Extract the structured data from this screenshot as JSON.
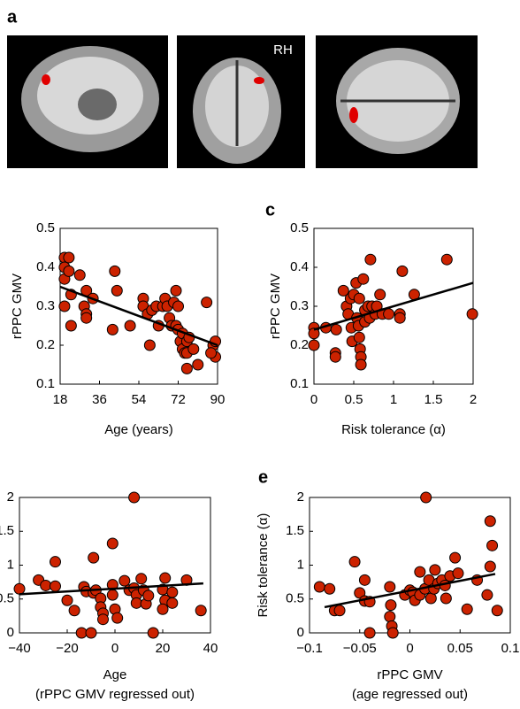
{
  "panel_a": {
    "label": "a",
    "annotation": "RH"
  },
  "chart_data": [
    {
      "type": "scatter",
      "xlabel": "Age (years)",
      "ylabel": "rPPC GMV",
      "color": "#cc2200",
      "xlim": [
        18,
        90
      ],
      "xticks": [
        18,
        36,
        54,
        72,
        90
      ],
      "ylim": [
        0.1,
        0.5
      ],
      "yticks": [
        0.1,
        0.2,
        0.3,
        0.4,
        0.5
      ],
      "x": [
        20,
        22,
        20,
        20,
        22,
        23,
        20,
        23,
        27,
        30,
        29,
        30,
        30,
        33,
        43,
        44,
        42,
        50,
        56,
        56,
        58,
        60,
        59,
        62,
        63,
        65,
        66,
        67,
        68,
        69,
        70,
        71,
        71,
        72,
        72,
        73,
        74,
        74,
        75,
        76,
        76,
        77,
        79,
        76,
        81,
        85,
        88,
        89,
        89,
        87
      ],
      "values": [
        0.425,
        0.425,
        0.4,
        0.37,
        0.39,
        0.33,
        0.3,
        0.25,
        0.38,
        0.34,
        0.3,
        0.28,
        0.27,
        0.32,
        0.39,
        0.34,
        0.24,
        0.25,
        0.32,
        0.3,
        0.28,
        0.29,
        0.2,
        0.3,
        0.25,
        0.3,
        0.32,
        0.3,
        0.27,
        0.25,
        0.31,
        0.34,
        0.25,
        0.3,
        0.24,
        0.21,
        0.23,
        0.19,
        0.18,
        0.21,
        0.18,
        0.22,
        0.19,
        0.14,
        0.15,
        0.31,
        0.2,
        0.21,
        0.17,
        0.18
      ],
      "fit": {
        "x": [
          18,
          90
        ],
        "values": [
          0.35,
          0.2
        ]
      }
    },
    {
      "type": "scatter",
      "panel_label": "c",
      "xlabel": "Risk tolerance (α)",
      "ylabel": "rPPC GMV",
      "color": "#cc2200",
      "xlim": [
        0,
        2
      ],
      "xticks": [
        0,
        0.5,
        1,
        1.5,
        2
      ],
      "ylim": [
        0.1,
        0.5
      ],
      "yticks": [
        0.1,
        0.2,
        0.3,
        0.4,
        0.5
      ],
      "x": [
        0,
        0,
        0,
        0.15,
        0.28,
        0.27,
        0.27,
        0.37,
        0.41,
        0.43,
        0.46,
        0.47,
        0.48,
        0.5,
        0.53,
        0.54,
        0.56,
        0.57,
        0.57,
        0.58,
        0.59,
        0.59,
        0.62,
        0.64,
        0.64,
        0.68,
        0.7,
        0.71,
        0.73,
        0.77,
        0.79,
        0.83,
        0.86,
        0.94,
        1.08,
        1.08,
        1.11,
        1.26,
        1.67,
        1.99
      ],
      "values": [
        0.245,
        0.23,
        0.2,
        0.245,
        0.24,
        0.18,
        0.17,
        0.34,
        0.3,
        0.28,
        0.32,
        0.245,
        0.21,
        0.33,
        0.36,
        0.27,
        0.25,
        0.32,
        0.22,
        0.19,
        0.17,
        0.15,
        0.37,
        0.29,
        0.26,
        0.3,
        0.27,
        0.42,
        0.3,
        0.28,
        0.3,
        0.33,
        0.28,
        0.28,
        0.28,
        0.27,
        0.39,
        0.33,
        0.42,
        0.28
      ],
      "fit": {
        "x": [
          0,
          2
        ],
        "values": [
          0.24,
          0.36
        ]
      }
    },
    {
      "type": "scatter",
      "xlabel": [
        "Age",
        "(rPPC GMV regressed out)"
      ],
      "color": "#cc2200",
      "xlim": [
        -40,
        40
      ],
      "xticks": [
        {
          "value": -40,
          "label": "−40"
        },
        {
          "value": -20,
          "label": "−20"
        },
        0,
        20,
        40
      ],
      "ylim": [
        0,
        2
      ],
      "yticks": [
        0,
        0.5,
        1,
        1.5,
        2
      ],
      "x": [
        -40,
        -32,
        -29,
        -25,
        -25,
        -20,
        -17,
        -13,
        -9,
        -14,
        -10,
        -12,
        -9,
        -8,
        -6,
        -6,
        -5,
        -5,
        -1,
        -1,
        -1,
        0,
        1,
        4,
        6,
        8,
        8,
        9,
        9,
        11,
        12,
        13,
        14,
        16,
        20,
        21,
        21,
        24,
        24,
        30,
        36,
        20
      ],
      "values": [
        0.65,
        0.78,
        0.7,
        1.05,
        0.69,
        0.48,
        0.33,
        0.68,
        1.11,
        0,
        0,
        0.61,
        0.59,
        0.63,
        0.51,
        0.38,
        0.29,
        0.2,
        0.56,
        0.71,
        1.32,
        0.35,
        0.22,
        0.77,
        0.63,
        0.66,
        2,
        0.56,
        0.44,
        0.8,
        0.63,
        0.43,
        0.55,
        0,
        0.64,
        0.81,
        0.48,
        0.44,
        0.6,
        0.78,
        0.33,
        0.35
      ],
      "fit": {
        "x": [
          -40,
          37
        ],
        "values": [
          0.57,
          0.73
        ]
      }
    },
    {
      "type": "scatter",
      "panel_label": "e",
      "xlabel": [
        "rPPC GMV",
        "(age regressed out)"
      ],
      "ylabel": "Risk tolerance (α)",
      "color": "#cc2200",
      "xlim": [
        -0.1,
        0.1
      ],
      "xticks": [
        {
          "value": -0.1,
          "label": "−0.1"
        },
        {
          "value": -0.05,
          "label": "−0.05"
        },
        0,
        0.05,
        0.1
      ],
      "ylim": [
        0,
        2
      ],
      "yticks": [
        0,
        0.5,
        1,
        1.5,
        2
      ],
      "x": [
        -0.09,
        -0.08,
        -0.075,
        -0.07,
        -0.055,
        -0.05,
        -0.045,
        -0.045,
        -0.04,
        -0.04,
        -0.02,
        -0.02,
        -0.019,
        -0.018,
        -0.017,
        -0.005,
        0,
        0.003,
        0.005,
        0.01,
        0.01,
        0.015,
        0.016,
        0.019,
        0.021,
        0.024,
        0.025,
        0.028,
        0.032,
        0.035,
        0.036,
        0.04,
        0.045,
        0.048,
        0.057,
        0.067,
        0.077,
        0.08,
        0.08,
        0.082,
        0.087
      ],
      "values": [
        0.68,
        0.65,
        0.33,
        0.33,
        1.05,
        0.59,
        0.47,
        0.78,
        0,
        0.46,
        0.68,
        0.24,
        0.41,
        0.1,
        0,
        0.56,
        0.63,
        0.6,
        0.48,
        0.56,
        0.9,
        0.65,
        2,
        0.78,
        0.51,
        0.65,
        0.93,
        0.73,
        0.78,
        0.7,
        0.51,
        0.84,
        1.11,
        0.88,
        0.35,
        0.78,
        0.56,
        0.98,
        1.65,
        1.29,
        0.33
      ],
      "fit": {
        "x": [
          -0.085,
          0.085
        ],
        "values": [
          0.38,
          0.87
        ]
      }
    }
  ]
}
